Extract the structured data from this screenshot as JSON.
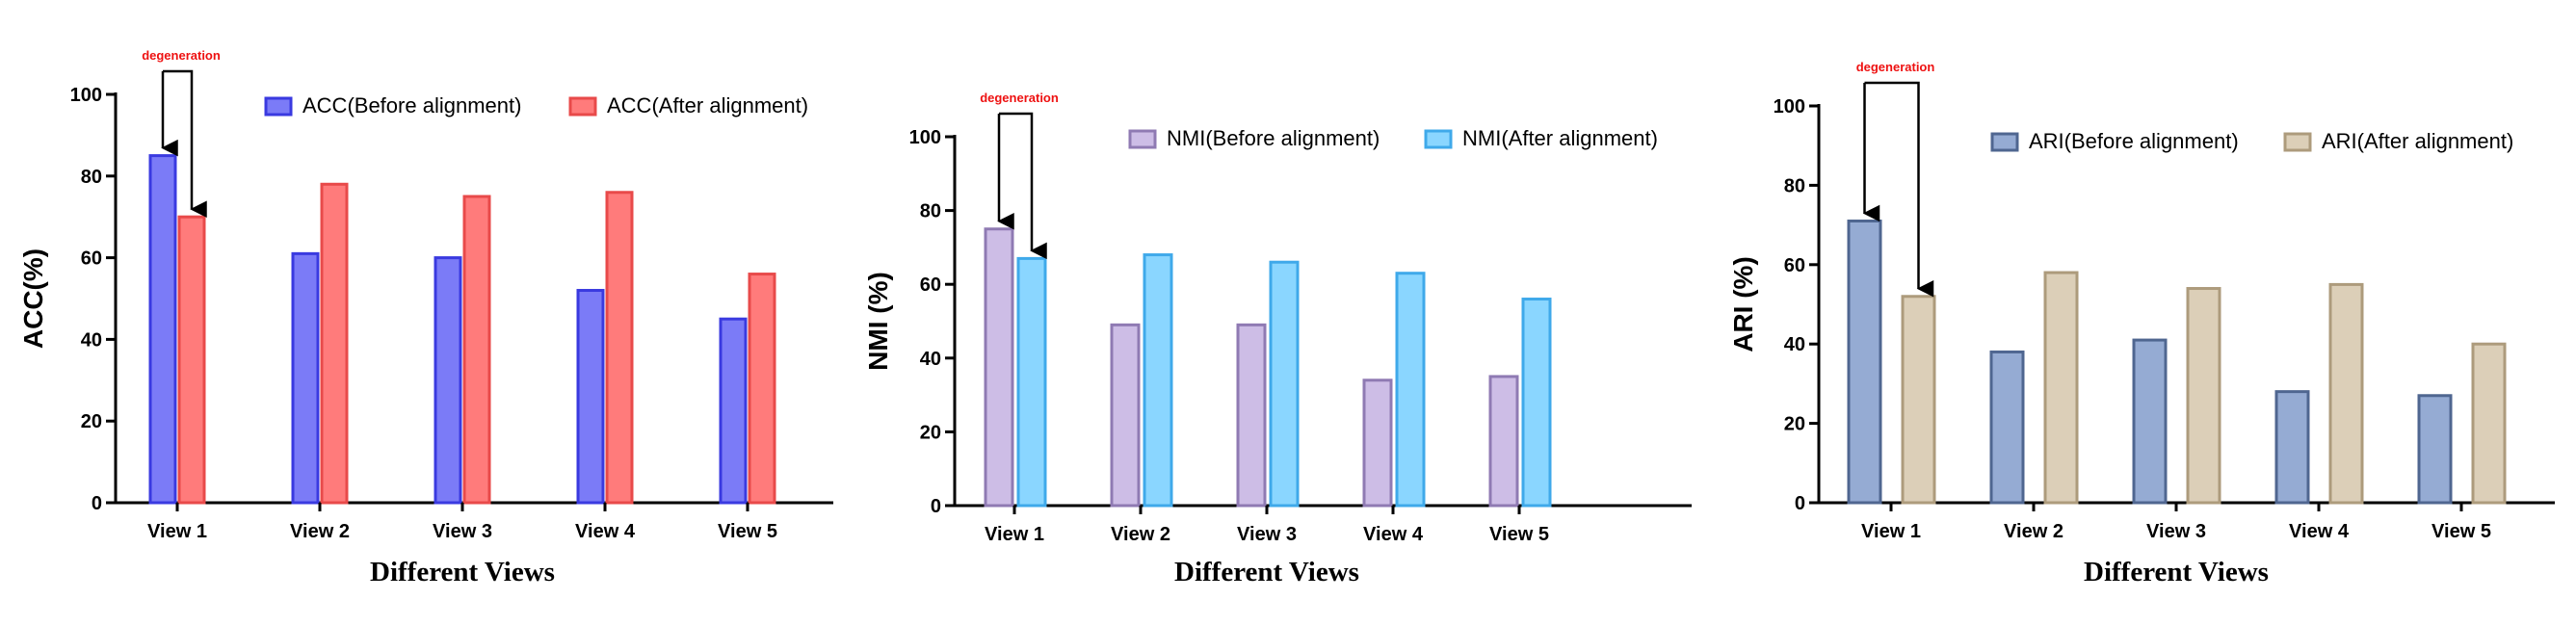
{
  "chart_data": [
    {
      "type": "bar",
      "categories": [
        "View 1",
        "View 2",
        "View 3",
        "View 4",
        "View 5"
      ],
      "series": [
        {
          "name": "ACC(Before alignment)",
          "values": [
            85,
            61,
            60,
            52,
            45
          ],
          "fill": "#7b7bf7",
          "stroke": "#3a3ae0"
        },
        {
          "name": "ACC(After alignment)",
          "values": [
            70,
            78,
            75,
            76,
            56
          ],
          "fill": "#ff7b7b",
          "stroke": "#e84a4a"
        }
      ],
      "xlabel": "Different Views",
      "ylabel": "ACC(%)",
      "ylim": [
        0,
        100
      ],
      "yticks": [
        0,
        20,
        40,
        60,
        80,
        100
      ],
      "grid": false,
      "legend": "top-right",
      "annotation": {
        "text": "degeneration",
        "from_category": "View 1"
      }
    },
    {
      "type": "bar",
      "categories": [
        "View 1",
        "View 2",
        "View 3",
        "View 4",
        "View 5"
      ],
      "series": [
        {
          "name": "NMI(Before alignment)",
          "values": [
            75,
            49,
            49,
            34,
            35
          ],
          "fill": "#cdbde6",
          "stroke": "#8f7ab3"
        },
        {
          "name": "NMI(After alignment)",
          "values": [
            67,
            68,
            66,
            63,
            56
          ],
          "fill": "#8ad6ff",
          "stroke": "#3fa9ea"
        }
      ],
      "xlabel": "Different Views",
      "ylabel": "NMI (%)",
      "ylim": [
        0,
        100
      ],
      "yticks": [
        0,
        20,
        40,
        60,
        80,
        100
      ],
      "grid": false,
      "legend": "top-right",
      "annotation": {
        "text": "degeneration",
        "from_category": "View 1"
      }
    },
    {
      "type": "bar",
      "categories": [
        "View 1",
        "View 2",
        "View 3",
        "View 4",
        "View 5"
      ],
      "series": [
        {
          "name": "ARI(Before alignment)",
          "values": [
            71,
            38,
            41,
            28,
            27
          ],
          "fill": "#95abd3",
          "stroke": "#4f6690"
        },
        {
          "name": "ARI(After alignment)",
          "values": [
            52,
            58,
            54,
            55,
            40
          ],
          "fill": "#dccfb8",
          "stroke": "#ad9b7c"
        }
      ],
      "xlabel": "Different Views",
      "ylabel": "ARI (%)",
      "ylim": [
        0,
        100
      ],
      "yticks": [
        0,
        20,
        40,
        60,
        80,
        100
      ],
      "grid": false,
      "legend": "top-right",
      "annotation": {
        "text": "degeneration",
        "from_category": "View 1"
      }
    }
  ]
}
